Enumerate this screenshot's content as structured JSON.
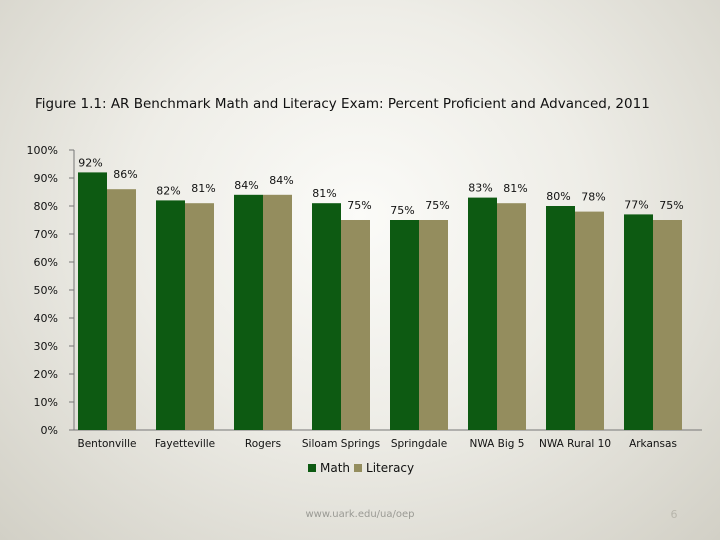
{
  "title": "Figure 1.1: AR Benchmark Math and Literacy Exam: Percent Proficient and Advanced, 2011",
  "footer": {
    "url": "www.uark.edu/ua/oep",
    "page_number": "6"
  },
  "chart_data": {
    "type": "bar",
    "title": "Figure 1.1: AR Benchmark Math and Literacy Exam: Percent Proficient and Advanced, 2011",
    "xlabel": "",
    "ylabel": "",
    "ylim": [
      0,
      100
    ],
    "yticks": [
      "0%",
      "10%",
      "20%",
      "30%",
      "40%",
      "50%",
      "60%",
      "70%",
      "80%",
      "90%",
      "100%"
    ],
    "categories": [
      "Bentonville",
      "Fayetteville",
      "Rogers",
      "Siloam Springs",
      "Springdale",
      "NWA Big 5",
      "NWA Rural 10",
      "Arkansas"
    ],
    "series": [
      {
        "name": "Math",
        "color": "#0d5a12",
        "values": [
          92,
          82,
          84,
          81,
          75,
          83,
          80,
          77
        ],
        "labels": [
          "92%",
          "82%",
          "84%",
          "81%",
          "75%",
          "83%",
          "80%",
          "77%"
        ]
      },
      {
        "name": "Literacy",
        "color": "#948d5e",
        "values": [
          86,
          81,
          84,
          75,
          75,
          81,
          78,
          75
        ],
        "labels": [
          "86%",
          "81%",
          "84%",
          "75%",
          "75%",
          "81%",
          "78%",
          "75%"
        ]
      }
    ],
    "legend_position": "bottom",
    "grid": false
  }
}
